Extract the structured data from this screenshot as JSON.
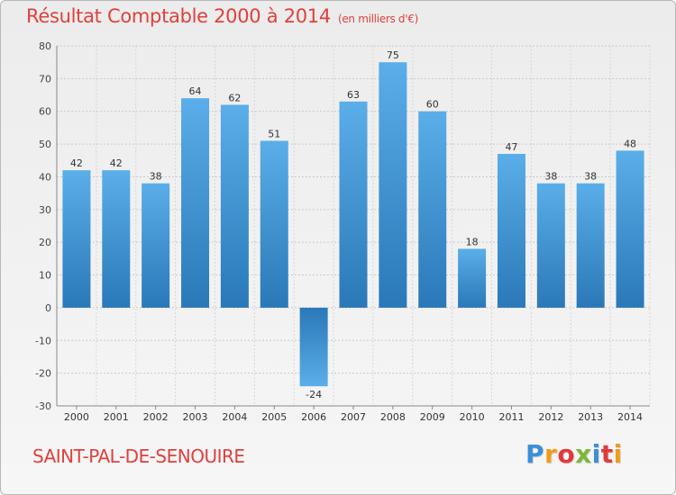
{
  "header": {
    "title": "Résultat Comptable 2000 à 2014",
    "subtitle": "(en milliers d'€)"
  },
  "footer": {
    "town": "SAINT-PAL-DE-SENOUIRE",
    "logo_text": "Proxiti"
  },
  "colors": {
    "title": "#e0403c",
    "bar_light": "#5aaee9",
    "bar_dark": "#2a78b8",
    "logo": [
      "#3b8fd8",
      "#f29b1a",
      "#e03a3a",
      "#7ab83a",
      "#3b8fd8",
      "#e03a3a",
      "#f29b1a"
    ]
  },
  "chart_data": {
    "type": "bar",
    "categories": [
      "2000",
      "2001",
      "2002",
      "2003",
      "2004",
      "2005",
      "2006",
      "2007",
      "2008",
      "2009",
      "2010",
      "2011",
      "2012",
      "2013",
      "2014"
    ],
    "values": [
      42,
      42,
      38,
      64,
      62,
      51,
      -24,
      63,
      75,
      60,
      18,
      47,
      38,
      38,
      48
    ],
    "ylim": [
      -30,
      80
    ],
    "yticks": [
      -30,
      -20,
      -10,
      0,
      10,
      20,
      30,
      40,
      50,
      60,
      70,
      80
    ],
    "grid": true,
    "legend": "none"
  }
}
